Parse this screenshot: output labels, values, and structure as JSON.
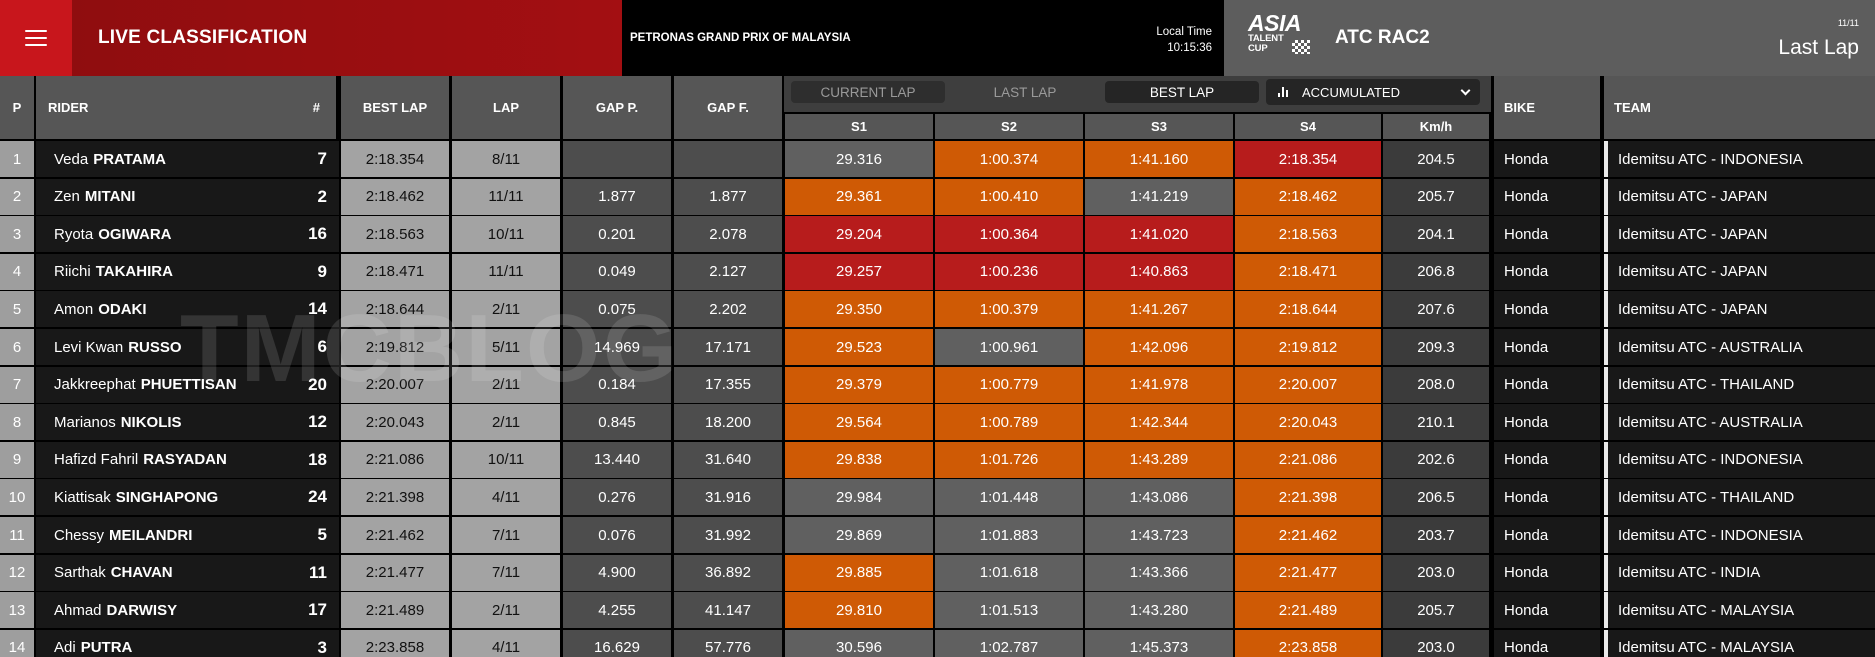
{
  "header": {
    "title": "LIVE CLASSIFICATION",
    "event": "PETRONAS GRAND PRIX OF MALAYSIA",
    "local_time_label": "Local Time",
    "local_time": "10:15:36",
    "logo_line1": "ASIA",
    "logo_line2": "TALENT",
    "logo_line3": "CUP",
    "class_name": "ATC RAC2",
    "lap_count": "11/11",
    "lap_mode": "Last Lap"
  },
  "columns": {
    "p": "P",
    "rider": "RIDER",
    "num": "#",
    "best_lap": "BEST LAP",
    "lap": "LAP",
    "gap_p": "GAP P.",
    "gap_f": "GAP F.",
    "s1": "S1",
    "s2": "S2",
    "s3": "S3",
    "s4": "S4",
    "kmh": "Km/h",
    "bike": "BIKE",
    "team": "TEAM"
  },
  "tabs": {
    "current_lap": "CURRENT LAP",
    "last_lap": "LAST LAP",
    "best_lap": "BEST LAP",
    "accumulated": "ACCUMULATED"
  },
  "colors": {
    "orange": "#cf5a05",
    "red": "#b71c1c",
    "grey": "#606060"
  },
  "rows": [
    {
      "p": "1",
      "first": "Veda",
      "last": "PRATAMA",
      "num": "7",
      "best": "2:18.354",
      "lap": "8/11",
      "gap_p": "",
      "gap_f": "",
      "s1": "29.316",
      "s1c": "grey",
      "s2": "1:00.374",
      "s2c": "orange",
      "s3": "1:41.160",
      "s3c": "orange",
      "s4": "2:18.354",
      "s4c": "red",
      "kmh": "204.5",
      "bike": "Honda",
      "team": "Idemitsu ATC - INDONESIA"
    },
    {
      "p": "2",
      "first": "Zen",
      "last": "MITANI",
      "num": "2",
      "best": "2:18.462",
      "lap": "11/11",
      "gap_p": "1.877",
      "gap_f": "1.877",
      "s1": "29.361",
      "s1c": "orange",
      "s2": "1:00.410",
      "s2c": "orange",
      "s3": "1:41.219",
      "s3c": "grey",
      "s4": "2:18.462",
      "s4c": "orange",
      "kmh": "205.7",
      "bike": "Honda",
      "team": "Idemitsu ATC - JAPAN"
    },
    {
      "p": "3",
      "first": "Ryota",
      "last": "OGIWARA",
      "num": "16",
      "best": "2:18.563",
      "lap": "10/11",
      "gap_p": "0.201",
      "gap_f": "2.078",
      "s1": "29.204",
      "s1c": "red",
      "s2": "1:00.364",
      "s2c": "red",
      "s3": "1:41.020",
      "s3c": "red",
      "s4": "2:18.563",
      "s4c": "orange",
      "kmh": "204.1",
      "bike": "Honda",
      "team": "Idemitsu ATC - JAPAN"
    },
    {
      "p": "4",
      "first": "Riichi",
      "last": "TAKAHIRA",
      "num": "9",
      "best": "2:18.471",
      "lap": "11/11",
      "gap_p": "0.049",
      "gap_f": "2.127",
      "s1": "29.257",
      "s1c": "red",
      "s2": "1:00.236",
      "s2c": "red",
      "s3": "1:40.863",
      "s3c": "red",
      "s4": "2:18.471",
      "s4c": "orange",
      "kmh": "206.8",
      "bike": "Honda",
      "team": "Idemitsu ATC - JAPAN"
    },
    {
      "p": "5",
      "first": "Amon",
      "last": "ODAKI",
      "num": "14",
      "best": "2:18.644",
      "lap": "2/11",
      "gap_p": "0.075",
      "gap_f": "2.202",
      "s1": "29.350",
      "s1c": "orange",
      "s2": "1:00.379",
      "s2c": "orange",
      "s3": "1:41.267",
      "s3c": "orange",
      "s4": "2:18.644",
      "s4c": "orange",
      "kmh": "207.6",
      "bike": "Honda",
      "team": "Idemitsu ATC - JAPAN"
    },
    {
      "p": "6",
      "first": "Levi Kwan",
      "last": "RUSSO",
      "num": "6",
      "best": "2:19.812",
      "lap": "5/11",
      "gap_p": "14.969",
      "gap_f": "17.171",
      "s1": "29.523",
      "s1c": "orange",
      "s2": "1:00.961",
      "s2c": "grey",
      "s3": "1:42.096",
      "s3c": "orange",
      "s4": "2:19.812",
      "s4c": "orange",
      "kmh": "209.3",
      "bike": "Honda",
      "team": "Idemitsu ATC - AUSTRALIA"
    },
    {
      "p": "7",
      "first": "Jakkreephat",
      "last": "PHUETTISAN",
      "num": "20",
      "best": "2:20.007",
      "lap": "2/11",
      "gap_p": "0.184",
      "gap_f": "17.355",
      "s1": "29.379",
      "s1c": "orange",
      "s2": "1:00.779",
      "s2c": "orange",
      "s3": "1:41.978",
      "s3c": "orange",
      "s4": "2:20.007",
      "s4c": "orange",
      "kmh": "208.0",
      "bike": "Honda",
      "team": "Idemitsu ATC - THAILAND"
    },
    {
      "p": "8",
      "first": "Marianos",
      "last": "NIKOLIS",
      "num": "12",
      "best": "2:20.043",
      "lap": "2/11",
      "gap_p": "0.845",
      "gap_f": "18.200",
      "s1": "29.564",
      "s1c": "orange",
      "s2": "1:00.789",
      "s2c": "orange",
      "s3": "1:42.344",
      "s3c": "orange",
      "s4": "2:20.043",
      "s4c": "orange",
      "kmh": "210.1",
      "bike": "Honda",
      "team": "Idemitsu ATC - AUSTRALIA"
    },
    {
      "p": "9",
      "first": "Hafizd Fahril",
      "last": "RASYADAN",
      "num": "18",
      "best": "2:21.086",
      "lap": "10/11",
      "gap_p": "13.440",
      "gap_f": "31.640",
      "s1": "29.838",
      "s1c": "orange",
      "s2": "1:01.726",
      "s2c": "orange",
      "s3": "1:43.289",
      "s3c": "orange",
      "s4": "2:21.086",
      "s4c": "orange",
      "kmh": "202.6",
      "bike": "Honda",
      "team": "Idemitsu ATC - INDONESIA"
    },
    {
      "p": "10",
      "first": "Kiattisak",
      "last": "SINGHAPONG",
      "num": "24",
      "best": "2:21.398",
      "lap": "4/11",
      "gap_p": "0.276",
      "gap_f": "31.916",
      "s1": "29.984",
      "s1c": "grey",
      "s2": "1:01.448",
      "s2c": "grey",
      "s3": "1:43.086",
      "s3c": "grey",
      "s4": "2:21.398",
      "s4c": "orange",
      "kmh": "206.5",
      "bike": "Honda",
      "team": "Idemitsu ATC - THAILAND"
    },
    {
      "p": "11",
      "first": "Chessy",
      "last": "MEILANDRI",
      "num": "5",
      "best": "2:21.462",
      "lap": "7/11",
      "gap_p": "0.076",
      "gap_f": "31.992",
      "s1": "29.869",
      "s1c": "grey",
      "s2": "1:01.883",
      "s2c": "grey",
      "s3": "1:43.723",
      "s3c": "grey",
      "s4": "2:21.462",
      "s4c": "orange",
      "kmh": "203.7",
      "bike": "Honda",
      "team": "Idemitsu ATC - INDONESIA"
    },
    {
      "p": "12",
      "first": "Sarthak",
      "last": "CHAVAN",
      "num": "11",
      "best": "2:21.477",
      "lap": "7/11",
      "gap_p": "4.900",
      "gap_f": "36.892",
      "s1": "29.885",
      "s1c": "orange",
      "s2": "1:01.618",
      "s2c": "grey",
      "s3": "1:43.366",
      "s3c": "grey",
      "s4": "2:21.477",
      "s4c": "orange",
      "kmh": "203.0",
      "bike": "Honda",
      "team": "Idemitsu ATC - INDIA"
    },
    {
      "p": "13",
      "first": "Ahmad",
      "last": "DARWISY",
      "num": "17",
      "best": "2:21.489",
      "lap": "2/11",
      "gap_p": "4.255",
      "gap_f": "41.147",
      "s1": "29.810",
      "s1c": "orange",
      "s2": "1:01.513",
      "s2c": "grey",
      "s3": "1:43.280",
      "s3c": "grey",
      "s4": "2:21.489",
      "s4c": "orange",
      "kmh": "205.7",
      "bike": "Honda",
      "team": "Idemitsu ATC - MALAYSIA"
    },
    {
      "p": "14",
      "first": "Adi",
      "last": "PUTRA",
      "num": "3",
      "best": "2:23.858",
      "lap": "4/11",
      "gap_p": "16.629",
      "gap_f": "57.776",
      "s1": "30.596",
      "s1c": "grey",
      "s2": "1:02.787",
      "s2c": "grey",
      "s3": "1:45.373",
      "s3c": "grey",
      "s4": "2:23.858",
      "s4c": "orange",
      "kmh": "203.0",
      "bike": "Honda",
      "team": "Idemitsu ATC - MALAYSIA"
    }
  ],
  "watermark": "TMCBLOG"
}
